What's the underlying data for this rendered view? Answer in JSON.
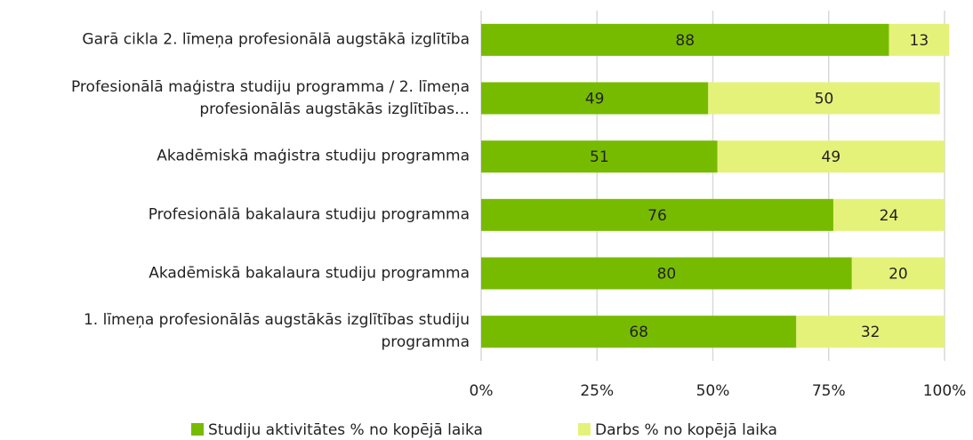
{
  "chart_data": {
    "type": "stacked-barh",
    "categories": [
      "Garā cikla 2. līmeņa profesionālā augstākā izglītība",
      "Profesionālā maģistra studiju programma / 2. līmeņa profesionālās augstākās izglītības…",
      "Akadēmiskā maģistra studiju programma",
      "Profesionālā bakalaura studiju programma",
      "Akadēmiskā bakalaura studiju programma",
      "1. līmeņa profesionālās augstākās izglītības studiju programma"
    ],
    "series": [
      {
        "name": "Studiju aktivitātes % no kopējā laika",
        "color": "#77bb00",
        "values": [
          88,
          49,
          51,
          76,
          80,
          68
        ]
      },
      {
        "name": "Darbs % no kopējā laika",
        "color": "#e5f27a",
        "values": [
          13,
          50,
          49,
          24,
          20,
          32
        ]
      }
    ],
    "xlim": [
      0,
      100
    ],
    "xticks": [
      {
        "value": 0,
        "label": "0%"
      },
      {
        "value": 25,
        "label": "25%"
      },
      {
        "value": 50,
        "label": "50%"
      },
      {
        "value": 75,
        "label": "75%"
      },
      {
        "value": 100,
        "label": "100%"
      }
    ],
    "grid": true
  }
}
